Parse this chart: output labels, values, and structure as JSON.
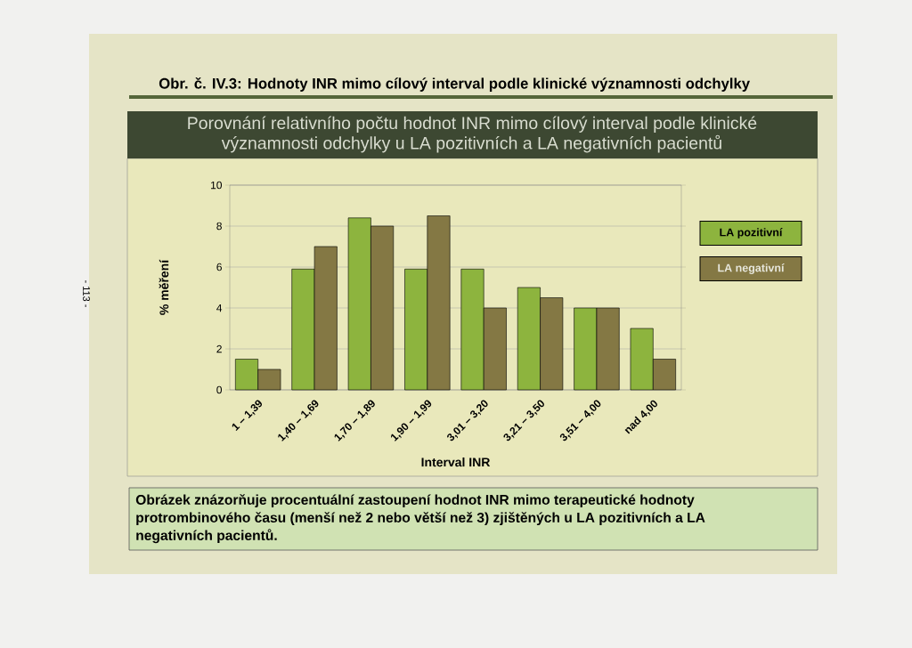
{
  "chart_data": {
    "type": "bar",
    "title": "Obr. č. IV.3: Hodnoty INR mimo cílový interval podle klinické významnosti odchylky",
    "subtitle": "Porovnání relativního počtu hodnot INR mimo cílový interval podle klinické významnosti odchylky u LA pozitivních a LA negativních pacientů",
    "xlabel": "Interval INR",
    "ylabel": "% měření",
    "categories": [
      "1 – 1,39",
      "1,40 – 1,69",
      "1,70 – 1,89",
      "1,90 – 1,99",
      "3,01 – 3,20",
      "3,21 – 3,50",
      "3,51 – 4,00",
      "nad 4,00"
    ],
    "series": [
      {
        "name": "LA pozitivní",
        "color": "#8db43e",
        "values": [
          1.5,
          5.9,
          8.4,
          5.9,
          5.9,
          5.0,
          4.0,
          3.0
        ]
      },
      {
        "name": "LA negativní",
        "color": "#847844",
        "values": [
          1.0,
          7.0,
          8.0,
          8.5,
          4.0,
          4.5,
          4.0,
          1.5
        ]
      }
    ],
    "ylim": [
      0,
      10
    ],
    "yticks": [
      0,
      2,
      4,
      6,
      8,
      10
    ],
    "grid": "y",
    "legend": "right",
    "annotations": [
      "Obrázek znázorňuje procentuální zastoupení hodnot INR mimo terapeutické hodnoty protrombinového času (menší než 2 nebo větší než 3) zjištěných u LA pozitivních a LA negativních pacientů.",
      "- 113 -"
    ]
  }
}
